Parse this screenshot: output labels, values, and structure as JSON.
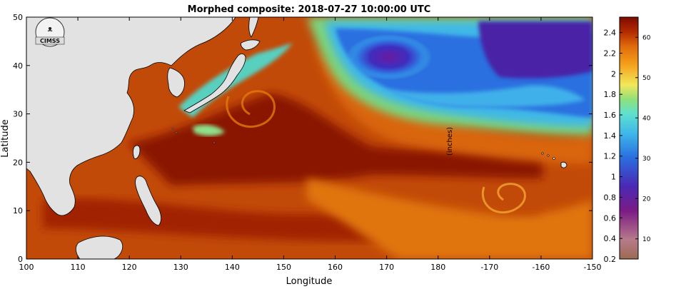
{
  "title": "Morphed composite: 2018-07-27 10:00:00 UTC",
  "logo_text": "CIMSS",
  "x_axis": {
    "label": "Longitude",
    "ticks": [
      "100",
      "110",
      "120",
      "130",
      "140",
      "150",
      "160",
      "170",
      "180",
      "-170",
      "-160",
      "-150"
    ]
  },
  "y_axis": {
    "label": "Latitude",
    "ticks": [
      "0",
      "10",
      "20",
      "30",
      "40",
      "50"
    ]
  },
  "colorbar": {
    "unit_label": "(inches)",
    "inches_ticks": [
      "0.2",
      "0.4",
      "0.6",
      "0.8",
      "1",
      "1.2",
      "1.4",
      "1.6",
      "1.8",
      "2",
      "2.2",
      "2.4"
    ],
    "mm_ticks": [
      "10",
      "20",
      "30",
      "40",
      "50",
      "60"
    ],
    "colors": [
      "#9c6a52",
      "#b77a8a",
      "#7b1b85",
      "#4a28b5",
      "#2a6fe0",
      "#3fb8e8",
      "#5fe0d0",
      "#8fe07a",
      "#f2e85a",
      "#f5a31c",
      "#e06a0a",
      "#b32a00",
      "#7d0a00"
    ]
  },
  "chart_data": {
    "type": "heatmap",
    "title": "Morphed composite: 2018-07-27 10:00:00 UTC",
    "xlabel": "Longitude",
    "ylabel": "Latitude",
    "xlim": [
      100,
      210
    ],
    "ylim": [
      0,
      50
    ],
    "variable_unit": "(inches)",
    "colorbar_range_inches": [
      0.2,
      2.5
    ],
    "colorbar_range_mm": [
      5,
      65
    ]
  }
}
